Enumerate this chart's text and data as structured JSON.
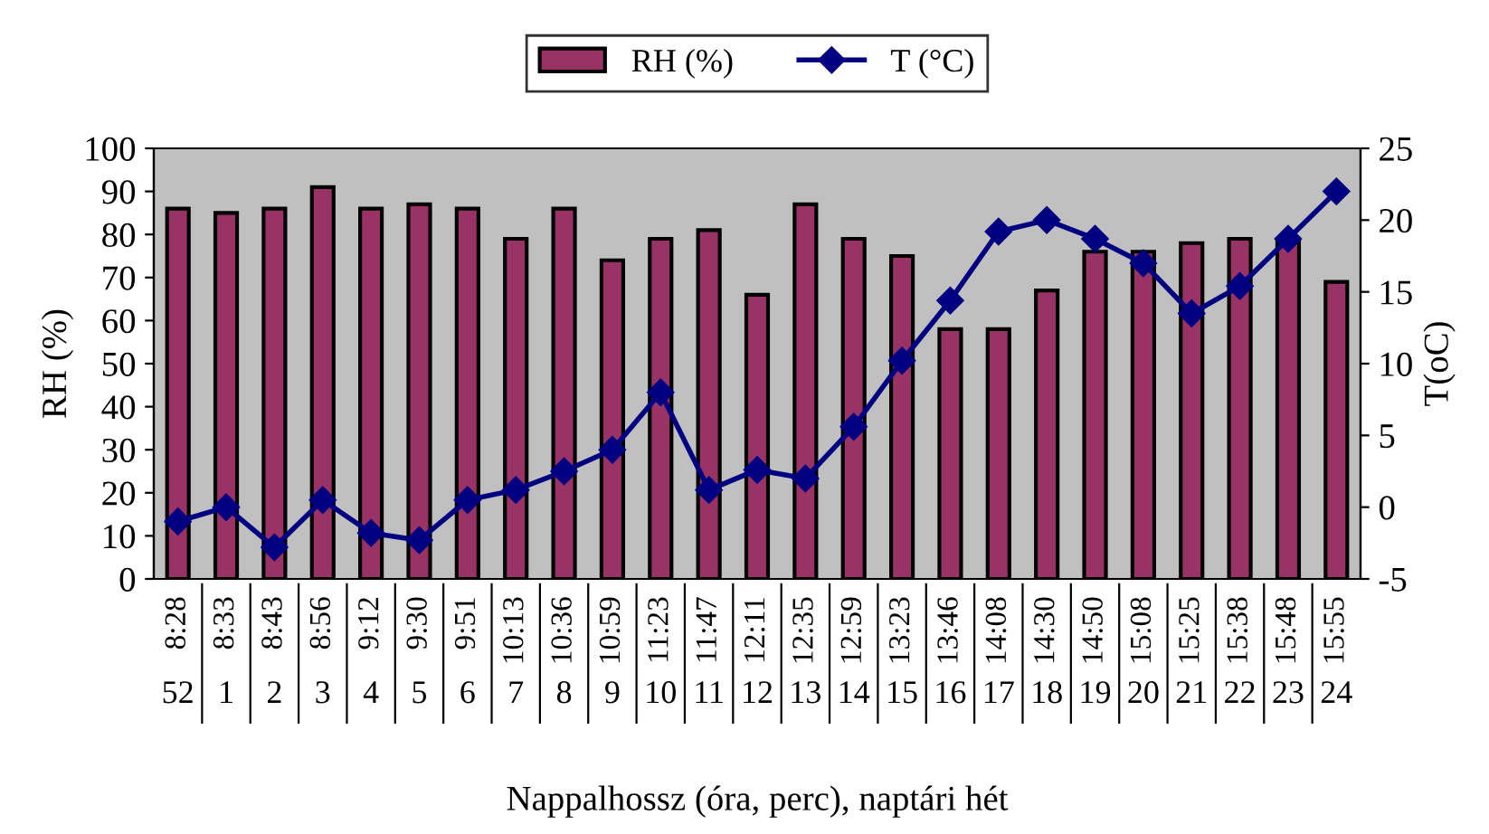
{
  "chart_data": {
    "type": "bar",
    "xlabel": "Nappalhossz (óra, perc), naptári hét",
    "ylabel": "RH (%)",
    "y2label": "T(oC)",
    "categories": [
      "8:28\n52",
      "8:33\n1",
      "8:43\n2",
      "8:56\n3",
      "9:12\n4",
      "9:30\n5",
      "9:51\n6",
      "10:13\n7",
      "10:36\n8",
      "10:59\n9",
      "11:23\n10",
      "11:47\n11",
      "12:11\n12",
      "12:35\n13",
      "12:59\n14",
      "13:23\n15",
      "13:46\n16",
      "14:08\n17",
      "14:30\n18",
      "14:50\n19",
      "15:08\n20",
      "15:25\n21",
      "15:38\n22",
      "15:48\n23",
      "15:55\n24"
    ],
    "series": [
      {
        "name": "RH (%)",
        "type": "bar",
        "color": "#993366",
        "values": [
          86,
          85,
          86,
          91,
          86,
          87,
          86,
          79,
          86,
          74,
          79,
          81,
          66,
          87,
          79,
          75,
          58,
          58,
          67,
          76,
          76,
          78,
          79,
          79,
          69
        ]
      },
      {
        "name": "T (°C)",
        "type": "line",
        "axis": "y2",
        "color": "#000080",
        "marker": "diamond",
        "values": [
          -1,
          0,
          -2.8,
          0.5,
          -1.8,
          -2.3,
          0.5,
          1.2,
          2.5,
          4,
          8,
          1.2,
          2.6,
          2,
          5.6,
          10.2,
          14.4,
          19.2,
          20,
          18.7,
          17,
          13.5,
          15.4,
          18.7,
          22
        ]
      }
    ],
    "ylim": [
      0,
      100
    ],
    "yticks": [
      0,
      10,
      20,
      30,
      40,
      50,
      60,
      70,
      80,
      90,
      100
    ],
    "y2lim": [
      -5,
      25
    ],
    "y2ticks": [
      -5,
      0,
      5,
      10,
      15,
      20,
      25
    ],
    "grid": false,
    "legend": "top"
  }
}
